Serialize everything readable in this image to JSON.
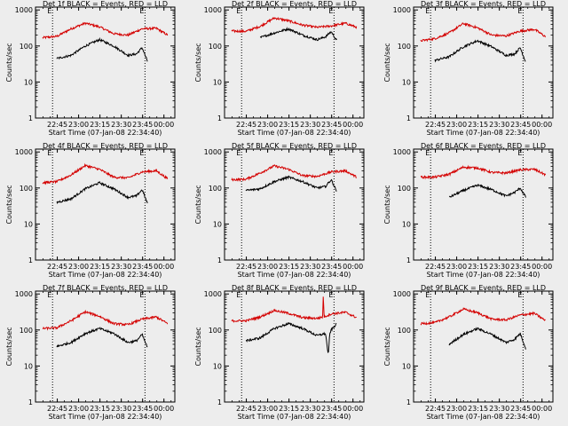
{
  "ylabel": "Counts/sec",
  "xlabel": "Start Time (07-Jan-08 22:34:40)",
  "x_tick_labels": [
    "22:45",
    "23:00",
    "23:15",
    "23:30",
    "23:45",
    "00:00"
  ],
  "y_tick_labels": [
    "1",
    "10",
    "100",
    "1000"
  ],
  "marker_label": "E",
  "colors": {
    "events": "#000000",
    "lld": "#d40000",
    "axes": "#000000",
    "background": "#ededed"
  },
  "chart_data": [
    {
      "type": "line",
      "title": "Det 1f BLACK = Events, RED = LLD",
      "x_unit": "minutes after 22:34:40",
      "xlim": [
        -5,
        93
      ],
      "ylim": [
        1,
        1200
      ],
      "yscale": "log",
      "vlines_dotted": [
        7,
        72
      ],
      "series": [
        {
          "name": "LLD",
          "x": [
            0,
            10,
            20,
            30,
            40,
            50,
            60,
            70,
            80,
            88
          ],
          "values": [
            170,
            185,
            300,
            430,
            340,
            220,
            200,
            300,
            310,
            200
          ]
        },
        {
          "name": "Events",
          "x": [
            10,
            20,
            30,
            40,
            50,
            60,
            66,
            70,
            74
          ],
          "values": [
            45,
            55,
            100,
            150,
            100,
            55,
            60,
            90,
            35
          ]
        }
      ]
    },
    {
      "type": "line",
      "title": "Det 2f BLACK = Events, RED = LLD",
      "x_unit": "minutes after 22:34:40",
      "xlim": [
        -5,
        93
      ],
      "ylim": [
        1,
        1200
      ],
      "yscale": "log",
      "vlines_dotted": [
        7,
        72
      ],
      "series": [
        {
          "name": "LLD",
          "x": [
            0,
            10,
            20,
            30,
            40,
            50,
            60,
            70,
            80,
            88
          ],
          "values": [
            260,
            255,
            350,
            600,
            500,
            380,
            330,
            360,
            430,
            330
          ]
        },
        {
          "name": "Events",
          "x": [
            20,
            30,
            40,
            50,
            60,
            66,
            70,
            74
          ],
          "values": [
            170,
            230,
            300,
            200,
            150,
            180,
            250,
            140
          ]
        }
      ]
    },
    {
      "type": "line",
      "title": "Det 3f BLACK = Events, RED = LLD",
      "x_unit": "minutes after 22:34:40",
      "xlim": [
        -5,
        93
      ],
      "ylim": [
        1,
        1200
      ],
      "yscale": "log",
      "vlines_dotted": [
        7,
        72
      ],
      "series": [
        {
          "name": "LLD",
          "x": [
            0,
            10,
            20,
            30,
            40,
            50,
            60,
            70,
            80,
            88
          ],
          "values": [
            140,
            160,
            230,
            420,
            320,
            200,
            190,
            260,
            290,
            180
          ]
        },
        {
          "name": "Events",
          "x": [
            10,
            20,
            30,
            40,
            50,
            60,
            66,
            70,
            74
          ],
          "values": [
            40,
            50,
            95,
            140,
            95,
            55,
            60,
            90,
            35
          ]
        }
      ]
    },
    {
      "type": "line",
      "title": "Det 4f BLACK = Events, RED = LLD",
      "x_unit": "minutes after 22:34:40",
      "xlim": [
        -5,
        93
      ],
      "ylim": [
        1,
        1200
      ],
      "yscale": "log",
      "vlines_dotted": [
        7,
        72
      ],
      "series": [
        {
          "name": "LLD",
          "x": [
            0,
            10,
            20,
            30,
            40,
            50,
            60,
            70,
            80,
            88
          ],
          "values": [
            140,
            150,
            230,
            420,
            330,
            200,
            190,
            280,
            300,
            180
          ]
        },
        {
          "name": "Events",
          "x": [
            10,
            20,
            30,
            40,
            50,
            60,
            66,
            70,
            74
          ],
          "values": [
            40,
            50,
            95,
            140,
            95,
            55,
            60,
            90,
            35
          ]
        }
      ]
    },
    {
      "type": "line",
      "title": "Det 5f BLACK = Events, RED = LLD",
      "x_unit": "minutes after 22:34:40",
      "xlim": [
        -5,
        93
      ],
      "ylim": [
        1,
        1200
      ],
      "yscale": "log",
      "vlines_dotted": [
        7,
        72
      ],
      "series": [
        {
          "name": "LLD",
          "x": [
            0,
            10,
            20,
            30,
            40,
            50,
            60,
            70,
            80,
            88
          ],
          "values": [
            170,
            175,
            260,
            410,
            330,
            220,
            210,
            280,
            300,
            200
          ]
        },
        {
          "name": "Events",
          "x": [
            10,
            20,
            30,
            40,
            50,
            60,
            66,
            70,
            74
          ],
          "values": [
            85,
            95,
            150,
            200,
            150,
            100,
            110,
            170,
            80
          ]
        }
      ]
    },
    {
      "type": "line",
      "title": "Det 6f BLACK = Events, RED = LLD",
      "x_unit": "minutes after 22:34:40",
      "xlim": [
        -5,
        93
      ],
      "ylim": [
        1,
        1200
      ],
      "yscale": "log",
      "vlines_dotted": [
        7,
        72
      ],
      "series": [
        {
          "name": "LLD",
          "x": [
            0,
            10,
            20,
            30,
            40,
            50,
            60,
            70,
            80,
            88
          ],
          "values": [
            200,
            200,
            240,
            380,
            360,
            270,
            260,
            320,
            330,
            230
          ]
        },
        {
          "name": "Events",
          "x": [
            20,
            30,
            40,
            50,
            60,
            66,
            70,
            74
          ],
          "values": [
            55,
            85,
            120,
            90,
            60,
            75,
            100,
            55
          ]
        }
      ]
    },
    {
      "type": "line",
      "title": "Det 7f BLACK = Events, RED = LLD",
      "x_unit": "minutes after 22:34:40",
      "xlim": [
        -5,
        93
      ],
      "ylim": [
        1,
        1200
      ],
      "yscale": "log",
      "vlines_dotted": [
        7,
        72
      ],
      "series": [
        {
          "name": "LLD",
          "x": [
            0,
            10,
            20,
            30,
            40,
            50,
            60,
            70,
            80,
            88
          ],
          "values": [
            110,
            115,
            180,
            320,
            240,
            150,
            140,
            200,
            230,
            150
          ]
        },
        {
          "name": "Events",
          "x": [
            10,
            20,
            30,
            40,
            50,
            60,
            66,
            70,
            74
          ],
          "values": [
            35,
            45,
            80,
            110,
            80,
            45,
            50,
            75,
            30
          ]
        }
      ]
    },
    {
      "type": "line",
      "title": "Det 8f BLACK = Events, RED = LLD",
      "x_unit": "minutes after 22:34:40",
      "xlim": [
        -5,
        93
      ],
      "ylim": [
        1,
        1200
      ],
      "yscale": "log",
      "vlines_dotted": [
        7,
        72
      ],
      "series": [
        {
          "name": "LLD",
          "x": [
            0,
            10,
            20,
            30,
            40,
            50,
            60,
            64,
            64.5,
            65,
            70,
            80,
            88
          ],
          "values": [
            180,
            180,
            230,
            350,
            290,
            220,
            210,
            230,
            1100,
            230,
            280,
            310,
            220
          ]
        },
        {
          "name": "Events",
          "x": [
            10,
            20,
            30,
            40,
            50,
            60,
            66,
            68,
            69,
            70,
            74
          ],
          "values": [
            50,
            60,
            110,
            150,
            110,
            70,
            80,
            20,
            80,
            100,
            150
          ]
        }
      ]
    },
    {
      "type": "line",
      "title": "Det 9f BLACK = Events, RED = LLD",
      "x_unit": "minutes after 22:34:40",
      "xlim": [
        -5,
        93
      ],
      "ylim": [
        1,
        1200
      ],
      "yscale": "log",
      "vlines_dotted": [
        7,
        72
      ],
      "series": [
        {
          "name": "LLD",
          "x": [
            0,
            10,
            20,
            30,
            40,
            50,
            60,
            70,
            80,
            88
          ],
          "values": [
            150,
            160,
            230,
            380,
            300,
            200,
            190,
            260,
            290,
            180
          ]
        },
        {
          "name": "Events",
          "x": [
            20,
            30,
            40,
            50,
            60,
            66,
            70,
            74
          ],
          "values": [
            40,
            75,
            110,
            75,
            45,
            55,
            80,
            30
          ]
        }
      ]
    }
  ]
}
